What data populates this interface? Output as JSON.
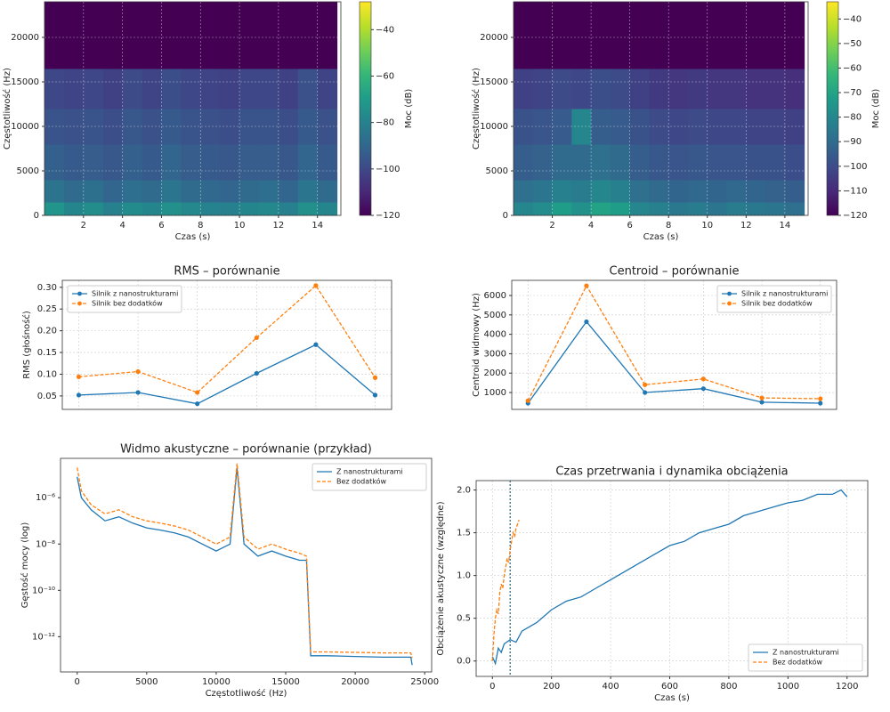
{
  "chart_data": [
    {
      "type": "spectrogram",
      "xlabel": "Czas (s)",
      "ylabel": "Częstotliwość (Hz)",
      "colorbar_label": "Moc (dB)",
      "colormap": "viridis",
      "grid": true,
      "xlim": [
        0,
        15.2
      ],
      "ylim": [
        0,
        24000
      ],
      "xticks": [
        2,
        4,
        6,
        8,
        10,
        12,
        14
      ],
      "yticks": [
        0,
        5000,
        10000,
        15000,
        20000
      ],
      "clim": [
        -120,
        -28
      ],
      "cticks": [
        {
          "value": -40,
          "label": "−40"
        },
        {
          "value": -60,
          "label": "−60"
        },
        {
          "value": -80,
          "label": "−80"
        },
        {
          "value": -100,
          "label": "−100"
        },
        {
          "value": -120,
          "label": "−120"
        }
      ],
      "time_bins": [
        0,
        1,
        2,
        3,
        4,
        5,
        6,
        7,
        8,
        9,
        10,
        11,
        12,
        13,
        14,
        15
      ],
      "freq_bins": [
        0,
        1500,
        4000,
        8000,
        12000,
        16500,
        24000
      ],
      "values": [
        [
          -72,
          -78,
          -75,
          -80,
          -76,
          -78,
          -74,
          -77,
          -79,
          -80,
          -78,
          -77,
          -80,
          -74,
          -78
        ],
        [
          -85,
          -88,
          -86,
          -90,
          -87,
          -88,
          -84,
          -88,
          -89,
          -90,
          -88,
          -87,
          -90,
          -84,
          -88
        ],
        [
          -92,
          -94,
          -93,
          -95,
          -92,
          -94,
          -90,
          -93,
          -94,
          -95,
          -93,
          -93,
          -95,
          -90,
          -94
        ],
        [
          -96,
          -97,
          -96,
          -98,
          -95,
          -97,
          -94,
          -96,
          -97,
          -98,
          -96,
          -96,
          -98,
          -94,
          -97
        ],
        [
          -100,
          -101,
          -100,
          -102,
          -99,
          -101,
          -98,
          -100,
          -101,
          -102,
          -100,
          -100,
          -102,
          -97,
          -101
        ],
        [
          -120,
          -120,
          -120,
          -120,
          -120,
          -120,
          -120,
          -120,
          -120,
          -120,
          -120,
          -120,
          -120,
          -120,
          -120
        ]
      ]
    },
    {
      "type": "spectrogram",
      "xlabel": "Czas (s)",
      "ylabel": "Częstotliwość (Hz)",
      "colorbar_label": "Moc (dB)",
      "colormap": "viridis",
      "grid": true,
      "xlim": [
        0,
        15.2
      ],
      "ylim": [
        0,
        24000
      ],
      "xticks": [
        2,
        4,
        6,
        8,
        10,
        12,
        14
      ],
      "yticks": [
        0,
        5000,
        10000,
        15000,
        20000
      ],
      "clim": [
        -120,
        -33
      ],
      "cticks": [
        {
          "value": -40,
          "label": "−40"
        },
        {
          "value": -50,
          "label": "−50"
        },
        {
          "value": -60,
          "label": "−60"
        },
        {
          "value": -70,
          "label": "−70"
        },
        {
          "value": -80,
          "label": "−80"
        },
        {
          "value": -90,
          "label": "−90"
        },
        {
          "value": -100,
          "label": "−100"
        },
        {
          "value": -110,
          "label": "−110"
        },
        {
          "value": -120,
          "label": "−120"
        }
      ],
      "time_bins": [
        0,
        1,
        2,
        3,
        4,
        5,
        6,
        7,
        8,
        9,
        10,
        11,
        12,
        13,
        14,
        15
      ],
      "freq_bins": [
        0,
        1500,
        4000,
        8000,
        12000,
        16500,
        24000
      ],
      "values": [
        [
          -80,
          -78,
          -72,
          -76,
          -70,
          -72,
          -80,
          -82,
          -85,
          -84,
          -86,
          -84,
          -85,
          -86,
          -88
        ],
        [
          -88,
          -86,
          -82,
          -84,
          -80,
          -82,
          -88,
          -90,
          -92,
          -91,
          -92,
          -91,
          -92,
          -93,
          -94
        ],
        [
          -94,
          -93,
          -90,
          -90,
          -88,
          -90,
          -94,
          -96,
          -97,
          -96,
          -97,
          -97,
          -98,
          -98,
          -99
        ],
        [
          -98,
          -97,
          -95,
          -80,
          -94,
          -95,
          -98,
          -100,
          -101,
          -100,
          -101,
          -101,
          -102,
          -102,
          -103
        ],
        [
          -103,
          -102,
          -100,
          -101,
          -99,
          -100,
          -103,
          -105,
          -106,
          -105,
          -106,
          -106,
          -107,
          -107,
          -108
        ],
        [
          -120,
          -120,
          -120,
          -120,
          -120,
          -120,
          -120,
          -120,
          -120,
          -120,
          -120,
          -120,
          -120,
          -120,
          -120
        ]
      ]
    },
    {
      "type": "line",
      "title": "RMS – porównanie",
      "ylabel": "RMS (głośność)",
      "grid": true,
      "legend": "upper left",
      "categories": [
        null,
        null,
        null,
        null,
        null,
        null
      ],
      "ylim": [
        0.019,
        0.316
      ],
      "yticks": [
        0.05,
        {
          "value": 0.1,
          "label": "0.10"
        },
        0.15,
        {
          "value": 0.2,
          "label": "0.20"
        },
        0.25,
        {
          "value": 0.3,
          "label": "0.30"
        }
      ],
      "series": [
        {
          "name": "Silnik z nanostrukturami",
          "color": "#1f77b4",
          "linestyle": "solid",
          "marker": "o",
          "values": [
            0.052,
            0.058,
            0.032,
            0.102,
            0.168,
            0.052
          ]
        },
        {
          "name": "Silnik bez dodatków",
          "color": "#ff7f0e",
          "linestyle": "dashed",
          "marker": "o",
          "values": [
            0.094,
            0.106,
            0.058,
            0.184,
            0.304,
            0.092
          ]
        }
      ]
    },
    {
      "type": "line",
      "title": "Centroid – porównanie",
      "ylabel": "Centroid widmowy (Hz)",
      "grid": true,
      "legend": "upper right",
      "categories": [
        null,
        null,
        null,
        null,
        null,
        null
      ],
      "ylim": [
        130,
        6780
      ],
      "yticks": [
        1000,
        2000,
        3000,
        4000,
        5000,
        6000
      ],
      "series": [
        {
          "name": "Silnik z nanostrukturami",
          "color": "#1f77b4",
          "linestyle": "solid",
          "marker": "o",
          "values": [
            450,
            4650,
            1000,
            1200,
            500,
            450
          ]
        },
        {
          "name": "Silnik bez dodatków",
          "color": "#ff7f0e",
          "linestyle": "dashed",
          "marker": "o",
          "values": [
            580,
            6500,
            1400,
            1700,
            720,
            680
          ]
        }
      ]
    },
    {
      "type": "line",
      "title": "Widmo akustyczne – porównanie (przykład)",
      "xlabel": "Częstotliwość (Hz)",
      "ylabel": "Gęstość mocy (log)",
      "grid": false,
      "legend": "upper right",
      "yscale": "log",
      "xlim": [
        -1200,
        25500
      ],
      "xticks": [
        0,
        5000,
        10000,
        15000,
        20000,
        25000
      ],
      "ylim": [
        3e-14,
        5e-05
      ],
      "yticks": [
        {
          "value": 1e-06,
          "label": "10⁻⁶"
        },
        {
          "value": 1e-08,
          "label": "10⁻⁸"
        },
        {
          "value": 1e-10,
          "label": "10⁻¹⁰"
        },
        {
          "value": 1e-12,
          "label": "10⁻¹²"
        }
      ],
      "x": [
        0,
        300,
        1000,
        2000,
        3000,
        4000,
        5000,
        6000,
        7000,
        8000,
        9000,
        10000,
        11000,
        11500,
        12000,
        13000,
        14000,
        15000,
        16000,
        16500,
        16800,
        17000,
        18000,
        20000,
        22000,
        24000,
        24100
      ],
      "series": [
        {
          "name": "Z nanostrukturami",
          "color": "#1f77b4",
          "linestyle": "solid",
          "values": [
            8e-06,
            1e-06,
            3e-07,
            1e-07,
            1.5e-07,
            8e-08,
            5e-08,
            4e-08,
            3e-08,
            2e-08,
            1e-08,
            5e-09,
            1e-08,
            2e-05,
            1e-08,
            3e-09,
            5e-09,
            3e-09,
            2e-09,
            2e-09,
            1.5e-13,
            1.5e-13,
            1.5e-13,
            1.4e-13,
            1.3e-13,
            1.3e-13,
            6e-14
          ]
        },
        {
          "name": "Bez dodatków",
          "color": "#ff7f0e",
          "linestyle": "dashed",
          "values": [
            2e-05,
            2e-06,
            5e-07,
            2e-07,
            3e-07,
            1.5e-07,
            1e-07,
            8e-08,
            6e-08,
            4e-08,
            2e-08,
            1e-08,
            2e-08,
            3e-05,
            2e-08,
            6e-09,
            1e-08,
            6e-09,
            4e-09,
            3e-09,
            2.2e-13,
            2.2e-13,
            2.2e-13,
            2.1e-13,
            2e-13,
            2e-13,
            1.2e-13
          ]
        }
      ]
    },
    {
      "type": "line",
      "title": "Czas przetrwania i dynamika obciążenia",
      "xlabel": "Czas (s)",
      "ylabel": "Obciążenie akustyczne (względne)",
      "grid": true,
      "legend": "lower right",
      "vline": 60,
      "xlim": [
        -55,
        1270
      ],
      "xticks": [
        0,
        200,
        400,
        600,
        800,
        1000,
        1200
      ],
      "ylim": [
        -0.18,
        2.11
      ],
      "yticks": [
        {
          "value": 0,
          "label": "0.0"
        },
        0.5,
        {
          "value": 1,
          "label": "1.0"
        },
        1.5,
        {
          "value": 2,
          "label": "2.0"
        }
      ],
      "series": [
        {
          "name": "Z nanostrukturami",
          "color": "#1f77b4",
          "linestyle": "solid",
          "x": [
            0,
            10,
            20,
            30,
            40,
            60,
            80,
            100,
            150,
            200,
            250,
            300,
            350,
            400,
            450,
            500,
            550,
            600,
            650,
            700,
            750,
            800,
            850,
            900,
            950,
            1000,
            1050,
            1100,
            1150,
            1180,
            1200
          ],
          "values": [
            0.05,
            -0.03,
            0.15,
            0.1,
            0.2,
            0.25,
            0.22,
            0.35,
            0.45,
            0.6,
            0.7,
            0.75,
            0.85,
            0.95,
            1.05,
            1.15,
            1.25,
            1.35,
            1.4,
            1.5,
            1.55,
            1.6,
            1.7,
            1.75,
            1.8,
            1.85,
            1.88,
            1.95,
            1.95,
            2.0,
            1.92
          ]
        },
        {
          "name": "Bez dodatków",
          "color": "#ff7f0e",
          "linestyle": "dashed",
          "x": [
            0,
            5,
            10,
            15,
            20,
            25,
            30,
            35,
            40,
            45,
            50,
            55,
            60,
            65,
            70,
            75,
            80,
            85,
            90
          ],
          "values": [
            0.0,
            0.3,
            0.5,
            0.6,
            0.55,
            0.8,
            0.9,
            0.85,
            1.0,
            1.1,
            1.2,
            1.15,
            1.3,
            1.4,
            1.5,
            1.45,
            1.55,
            1.6,
            1.65
          ]
        }
      ]
    }
  ]
}
